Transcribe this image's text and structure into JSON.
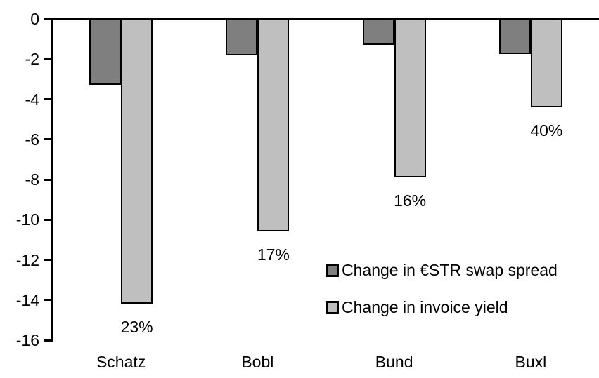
{
  "chart_data": {
    "type": "bar",
    "title": "",
    "xlabel": "",
    "ylabel": "",
    "categories": [
      "Schatz",
      "Bobl",
      "Bund",
      "Buxl"
    ],
    "series": [
      {
        "name": "Change in €STR swap spread",
        "color": "#7F7F7F",
        "values": [
          -3.3,
          -1.8,
          -1.3,
          -1.75
        ]
      },
      {
        "name": "Change in invoice yield",
        "color": "#BFBFBF",
        "values": [
          -14.2,
          -10.6,
          -7.9,
          -4.4
        ]
      }
    ],
    "bar_labels": [
      "23%",
      "17%",
      "16%",
      "40%"
    ],
    "ylim": [
      0,
      -16
    ],
    "ytick_step": 2,
    "ytick_labels": [
      "0",
      "-2",
      "-4",
      "-6",
      "-8",
      "-10",
      "-12",
      "-14",
      "-16"
    ],
    "grid": false,
    "legend_position": "inside-right",
    "axis_color": "#000000",
    "bar_border_color": "#000000",
    "background_color": "#FFFFFF"
  }
}
